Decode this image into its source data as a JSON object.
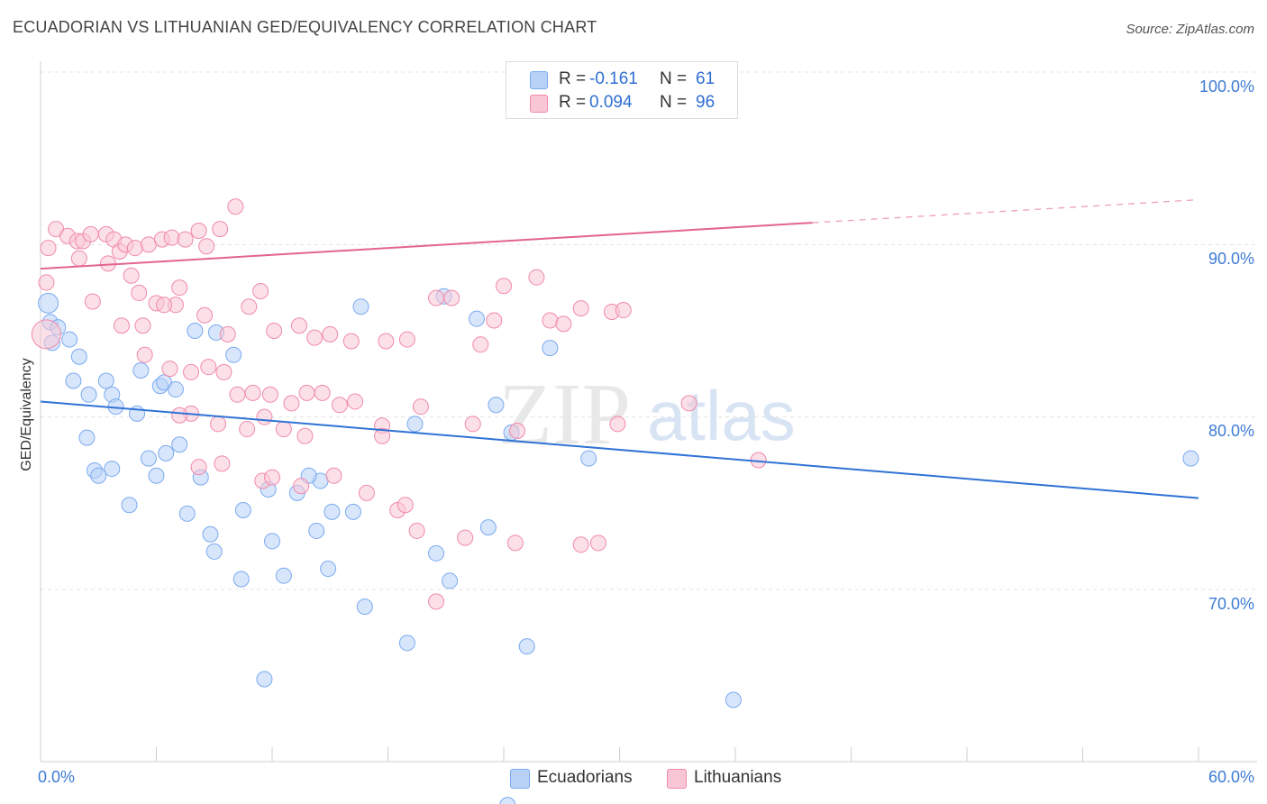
{
  "title": "ECUADORIAN VS LITHUANIAN GED/EQUIVALENCY CORRELATION CHART",
  "source": "Source: ZipAtlas.com",
  "watermark": {
    "zip": "ZIP",
    "atlas": "atlas"
  },
  "legend": {
    "r_label": "R =",
    "n_label": "N =",
    "rows": [
      {
        "name": "Ecuadorians",
        "r": "-0.161",
        "n": "61",
        "color": "#7aaaf0",
        "fill": "#b8d2f7"
      },
      {
        "name": "Lithuanians",
        "r": "0.094",
        "n": "96",
        "color": "#f08aaa",
        "fill": "#f9c6d6"
      }
    ]
  },
  "chart_data": {
    "type": "scatter",
    "xlabel": "",
    "ylabel": "GED/Equivalency",
    "xlim": [
      0,
      60
    ],
    "ylim": [
      60,
      100
    ],
    "x_tick_labels": [
      "0.0%",
      "60.0%"
    ],
    "y_ticks": [
      70,
      80,
      90,
      100
    ],
    "y_tick_labels": [
      "70.0%",
      "80.0%",
      "90.0%",
      "100.0%"
    ],
    "grid": true,
    "legend_position": "top-center",
    "series": [
      {
        "name": "Ecuadorians",
        "color": "#3a78d4",
        "points": [
          [
            0.5,
            85.5
          ],
          [
            0.9,
            85.2
          ],
          [
            0.6,
            84.3
          ],
          [
            1.5,
            84.5
          ],
          [
            2.0,
            83.5
          ],
          [
            1.7,
            82.1
          ],
          [
            2.5,
            81.3
          ],
          [
            3.4,
            82.1
          ],
          [
            3.7,
            81.3
          ],
          [
            3.9,
            80.6
          ],
          [
            5.2,
            82.7
          ],
          [
            5.0,
            80.2
          ],
          [
            6.2,
            81.8
          ],
          [
            6.4,
            82.0
          ],
          [
            7.0,
            81.6
          ],
          [
            8.0,
            85.0
          ],
          [
            9.1,
            84.9
          ],
          [
            10.0,
            83.6
          ],
          [
            5.6,
            77.6
          ],
          [
            6.0,
            76.6
          ],
          [
            3.7,
            77.0
          ],
          [
            4.6,
            74.9
          ],
          [
            2.4,
            78.8
          ],
          [
            2.8,
            76.9
          ],
          [
            3.0,
            76.6
          ],
          [
            7.2,
            78.4
          ],
          [
            6.5,
            77.9
          ],
          [
            8.3,
            76.5
          ],
          [
            7.6,
            74.4
          ],
          [
            8.8,
            73.2
          ],
          [
            9.0,
            72.2
          ],
          [
            10.5,
            74.6
          ],
          [
            11.8,
            75.8
          ],
          [
            12.0,
            72.8
          ],
          [
            12.6,
            70.8
          ],
          [
            10.4,
            70.6
          ],
          [
            11.6,
            64.8
          ],
          [
            14.5,
            76.3
          ],
          [
            15.1,
            74.5
          ],
          [
            14.9,
            71.2
          ],
          [
            16.2,
            74.5
          ],
          [
            13.9,
            76.6
          ],
          [
            13.3,
            75.6
          ],
          [
            16.8,
            69.0
          ],
          [
            16.6,
            86.4
          ],
          [
            19.4,
            79.6
          ],
          [
            20.9,
            87.0
          ],
          [
            20.5,
            72.1
          ],
          [
            21.2,
            70.5
          ],
          [
            19.0,
            66.9
          ],
          [
            22.6,
            85.7
          ],
          [
            23.6,
            80.7
          ],
          [
            23.2,
            73.6
          ],
          [
            24.4,
            79.1
          ],
          [
            25.2,
            66.7
          ],
          [
            24.2,
            57.5
          ],
          [
            26.4,
            84.0
          ],
          [
            28.4,
            77.6
          ],
          [
            35.9,
            63.6
          ],
          [
            59.6,
            77.6
          ],
          [
            14.3,
            73.4
          ]
        ]
      },
      {
        "name": "Lithuanians",
        "color": "#e3648e",
        "points": [
          [
            0.3,
            87.8
          ],
          [
            0.4,
            89.8
          ],
          [
            0.8,
            90.9
          ],
          [
            1.4,
            90.5
          ],
          [
            1.9,
            90.2
          ],
          [
            2.2,
            90.2
          ],
          [
            2.6,
            90.6
          ],
          [
            3.4,
            90.6
          ],
          [
            3.8,
            90.3
          ],
          [
            4.1,
            89.6
          ],
          [
            4.4,
            90.0
          ],
          [
            4.9,
            89.8
          ],
          [
            5.6,
            90.0
          ],
          [
            6.3,
            90.3
          ],
          [
            6.8,
            90.4
          ],
          [
            7.5,
            90.3
          ],
          [
            8.2,
            90.8
          ],
          [
            8.6,
            89.9
          ],
          [
            9.3,
            90.9
          ],
          [
            10.1,
            92.2
          ],
          [
            2.0,
            89.2
          ],
          [
            3.5,
            88.9
          ],
          [
            4.7,
            88.2
          ],
          [
            5.1,
            87.2
          ],
          [
            6.0,
            86.6
          ],
          [
            7.0,
            86.5
          ],
          [
            7.2,
            87.5
          ],
          [
            2.7,
            86.7
          ],
          [
            4.2,
            85.3
          ],
          [
            5.3,
            85.3
          ],
          [
            6.4,
            86.5
          ],
          [
            8.5,
            85.9
          ],
          [
            9.7,
            84.8
          ],
          [
            10.8,
            86.4
          ],
          [
            11.4,
            87.3
          ],
          [
            12.1,
            85.0
          ],
          [
            13.4,
            85.3
          ],
          [
            14.2,
            84.6
          ],
          [
            15.0,
            84.8
          ],
          [
            16.1,
            84.4
          ],
          [
            17.9,
            84.4
          ],
          [
            19.0,
            84.5
          ],
          [
            20.5,
            86.9
          ],
          [
            21.3,
            86.9
          ],
          [
            22.8,
            84.2
          ],
          [
            23.5,
            85.6
          ],
          [
            24.0,
            87.6
          ],
          [
            25.7,
            88.1
          ],
          [
            26.4,
            85.6
          ],
          [
            27.1,
            85.4
          ],
          [
            28.0,
            86.3
          ],
          [
            29.6,
            86.1
          ],
          [
            30.2,
            86.2
          ],
          [
            5.4,
            83.6
          ],
          [
            6.7,
            82.8
          ],
          [
            7.8,
            82.6
          ],
          [
            8.7,
            82.9
          ],
          [
            9.5,
            82.6
          ],
          [
            10.2,
            81.3
          ],
          [
            11.0,
            81.4
          ],
          [
            11.9,
            81.3
          ],
          [
            13.0,
            80.8
          ],
          [
            13.8,
            81.4
          ],
          [
            14.6,
            81.4
          ],
          [
            16.3,
            80.9
          ],
          [
            7.8,
            80.2
          ],
          [
            9.2,
            79.6
          ],
          [
            10.7,
            79.3
          ],
          [
            11.6,
            80.0
          ],
          [
            12.6,
            79.3
          ],
          [
            13.7,
            78.9
          ],
          [
            15.5,
            80.7
          ],
          [
            17.7,
            79.5
          ],
          [
            19.7,
            80.6
          ],
          [
            22.4,
            79.6
          ],
          [
            24.7,
            79.2
          ],
          [
            29.9,
            79.6
          ],
          [
            7.2,
            80.1
          ],
          [
            9.4,
            77.3
          ],
          [
            11.5,
            76.3
          ],
          [
            13.5,
            76.0
          ],
          [
            16.9,
            75.6
          ],
          [
            18.5,
            74.6
          ],
          [
            19.5,
            73.4
          ],
          [
            22.0,
            73.0
          ],
          [
            24.6,
            72.7
          ],
          [
            28.9,
            72.7
          ],
          [
            28.0,
            72.6
          ],
          [
            37.2,
            77.5
          ],
          [
            8.2,
            77.1
          ],
          [
            12.0,
            76.5
          ],
          [
            15.2,
            76.6
          ],
          [
            17.7,
            78.9
          ],
          [
            18.9,
            74.9
          ],
          [
            20.5,
            69.3
          ],
          [
            33.6,
            80.8
          ]
        ]
      }
    ],
    "trend_lines": [
      {
        "series": "Ecuadorians",
        "x": [
          0,
          60
        ],
        "y": [
          80.9,
          75.3
        ]
      },
      {
        "series": "Lithuanians",
        "x": [
          0,
          60
        ],
        "y": [
          88.6,
          92.6
        ]
      }
    ]
  }
}
